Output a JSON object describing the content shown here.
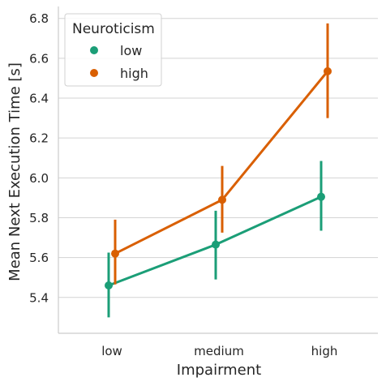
{
  "chart_data": {
    "type": "line",
    "title": "",
    "xlabel": "Impairment",
    "ylabel": "Mean Next Execution Time [s]",
    "categories": [
      "low",
      "medium",
      "high"
    ],
    "ylim": [
      5.22,
      6.86
    ],
    "yticks": [
      5.4,
      5.6,
      5.8,
      6.0,
      6.2,
      6.4,
      6.6,
      6.8
    ],
    "ytick_labels": [
      "5.4",
      "5.6",
      "5.8",
      "6.0",
      "6.2",
      "6.4",
      "6.6",
      "6.8"
    ],
    "grid": "horizontal",
    "legend": {
      "title": "Neuroticism",
      "placement": "top-left"
    },
    "series": [
      {
        "name": "low",
        "color": "#1b9e77",
        "values": [
          5.46,
          5.665,
          5.905
        ],
        "ci_low": [
          5.3,
          5.49,
          5.735
        ],
        "ci_high": [
          5.625,
          5.835,
          6.085
        ]
      },
      {
        "name": "high",
        "color": "#d95f02",
        "values": [
          5.62,
          5.89,
          6.535
        ],
        "ci_low": [
          5.465,
          5.725,
          6.3
        ],
        "ci_high": [
          5.79,
          6.06,
          6.775
        ]
      }
    ]
  }
}
